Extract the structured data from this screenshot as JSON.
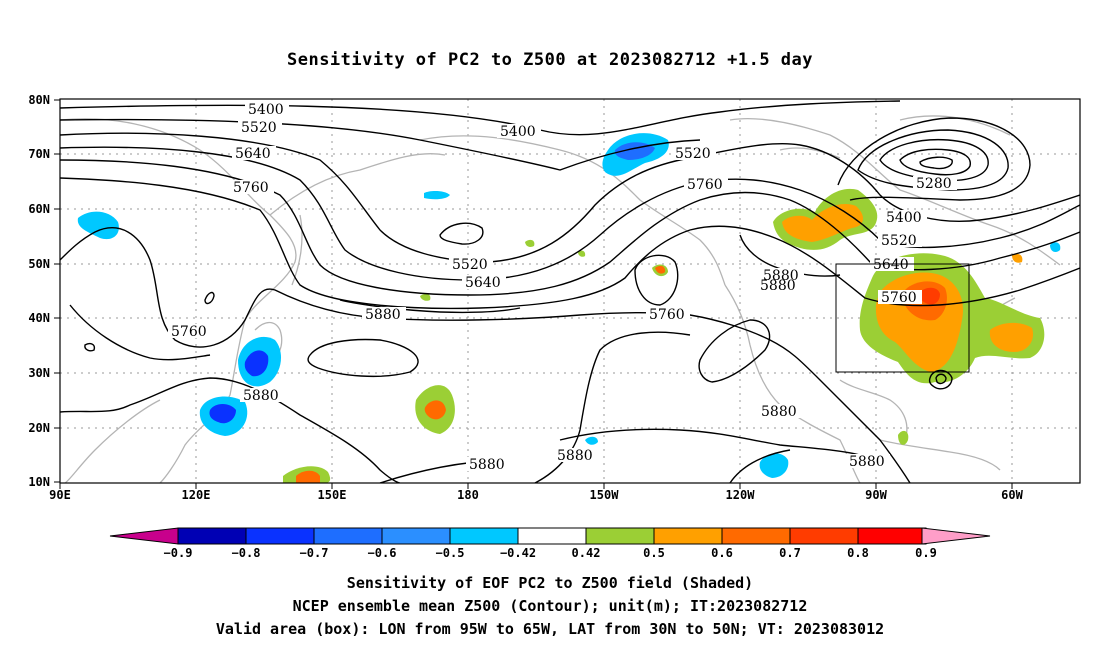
{
  "title": "Sensitivity of PC2 to Z500 at 2023082712 +1.5 day",
  "axes": {
    "lat_labels": [
      "80N",
      "70N",
      "60N",
      "50N",
      "40N",
      "30N",
      "20N",
      "10N"
    ],
    "lon_labels": [
      "90E",
      "120E",
      "150E",
      "180",
      "150W",
      "120W",
      "90W",
      "60W"
    ]
  },
  "contour_labels": [
    {
      "text": "5400"
    },
    {
      "text": "5520"
    },
    {
      "text": "5640"
    },
    {
      "text": "5760"
    },
    {
      "text": "5400"
    },
    {
      "text": "5520"
    },
    {
      "text": "5760"
    },
    {
      "text": "5280"
    },
    {
      "text": "5400"
    },
    {
      "text": "5520"
    },
    {
      "text": "5640"
    },
    {
      "text": "5760"
    },
    {
      "text": "5520"
    },
    {
      "text": "5640"
    },
    {
      "text": "5760"
    },
    {
      "text": "5760"
    },
    {
      "text": "5880"
    },
    {
      "text": "5880"
    },
    {
      "text": "5880"
    },
    {
      "text": "5880"
    },
    {
      "text": "5880"
    },
    {
      "text": "5880"
    },
    {
      "text": "5880"
    },
    {
      "text": "5880"
    }
  ],
  "colorbar": {
    "labels": [
      "−0.9",
      "−0.8",
      "−0.7",
      "−0.6",
      "−0.5",
      "−0.42",
      "0.42",
      "0.5",
      "0.6",
      "0.7",
      "0.8",
      "0.9"
    ],
    "colors": [
      "#0000b4",
      "#0a32ff",
      "#1e6eff",
      "#2b8fff",
      "#00c8ff",
      "#ffffff",
      "#9bcf35",
      "#ffa000",
      "#ff6a00",
      "#ff3c00",
      "#ff0000"
    ],
    "low_end": "#c8008c",
    "high_end": "#ff9ec8"
  },
  "captions": [
    "Sensitivity of EOF PC2 to Z500 field (Shaded)",
    "NCEP ensemble mean Z500 (Contour); unit(m); IT:2023082712",
    "Valid area (box): LON from 95W to 65W, LAT from 30N to 50N; VT: 2023083012"
  ]
}
